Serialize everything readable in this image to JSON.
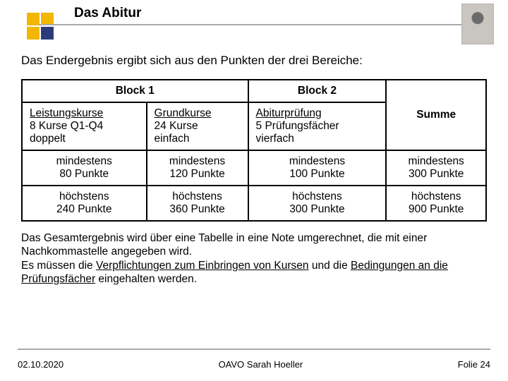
{
  "title": "Das Abitur",
  "intro": "Das Endergebnis ergibt sich aus den Punkten der drei Bereiche:",
  "table": {
    "head_block1": "Block 1",
    "head_block2": "Block 2",
    "r1c1_u": "Leistungskurse",
    "r1c1_l1": "8 Kurse Q1-Q4",
    "r1c1_l2": "doppelt",
    "r1c2_u": "Grundkurse",
    "r1c2_l1": "24 Kurse",
    "r1c2_l2": "einfach",
    "r1c3_u": "Abiturprüfung",
    "r1c3_l1": "5 Prüfungsfächer",
    "r1c3_l2": "vierfach",
    "r1c4": "Summe",
    "r2c1_l1": "mindestens",
    "r2c1_l2": "80 Punkte",
    "r2c2_l1": "mindestens",
    "r2c2_l2": "120 Punkte",
    "r2c3_l1": "mindestens",
    "r2c3_l2": "100 Punkte",
    "r2c4_l1": "mindestens",
    "r2c4_l2": "300 Punkte",
    "r3c1_l1": "höchstens",
    "r3c1_l2": "240 Punkte",
    "r3c2_l1": "höchstens",
    "r3c2_l2": "360 Punkte",
    "r3c3_l1": "höchstens",
    "r3c3_l2": "300 Punkte",
    "r3c4_l1": "höchstens",
    "r3c4_l2": "900 Punkte"
  },
  "outro_p1": "Das Gesamtergebnis wird über eine Tabelle in eine Note umgerechnet, die mit einer Nachkommastelle angegeben wird.",
  "outro_p2a": "Es müssen die ",
  "outro_p2u1": "Verpflichtungen zum Einbringen von Kursen",
  "outro_p2b": " und die ",
  "outro_p2u2": "Bedingungen an die Prüfungsfächer",
  "outro_p2c": " eingehalten werden.",
  "footer_date": "02.10.2020",
  "footer_center": "OAVO Sarah Hoeller",
  "footer_right": "Folie 24"
}
